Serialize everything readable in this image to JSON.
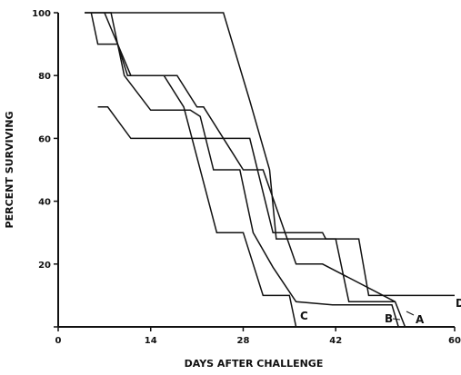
{
  "chart_data": {
    "type": "line",
    "title": "",
    "xlabel": "DAYS AFTER CHALLENGE",
    "ylabel": "PERCENT SURVIVING",
    "xlim": [
      0,
      60
    ],
    "ylim": [
      0,
      100
    ],
    "x_ticks": [
      0,
      14,
      28,
      42,
      60
    ],
    "y_ticks": [
      0,
      20,
      40,
      60,
      80,
      100
    ],
    "x_tick_labels": [
      "0",
      "14",
      "28",
      "42",
      "60"
    ],
    "y_tick_labels": [
      "",
      "20",
      "40",
      "60",
      "80",
      "100"
    ],
    "grid": false,
    "series": [
      {
        "name": "A",
        "x": [
          7,
          11,
          18,
          21,
          22,
          28,
          31,
          36,
          40,
          51,
          52.5
        ],
        "y": [
          100,
          80,
          80,
          70,
          70,
          50,
          50,
          20,
          20,
          8,
          0
        ]
      },
      {
        "name": "B",
        "x": [
          4,
          8,
          10,
          14,
          20,
          21.5,
          23.5,
          27.5,
          29.5,
          32.5,
          36,
          41.5,
          45,
          50.5,
          51.5
        ],
        "y": [
          100,
          100,
          80,
          69,
          69,
          67,
          50,
          50,
          30,
          19,
          8,
          7,
          7,
          7,
          0
        ]
      },
      {
        "name": "C",
        "x": [
          5,
          6,
          9,
          10.5,
          16,
          19,
          24,
          28,
          31,
          32,
          35,
          36,
          40,
          43,
          51,
          52
        ],
        "y": [
          100,
          90,
          90,
          80,
          80,
          70,
          30,
          30,
          10,
          10,
          10,
          0,
          0,
          0,
          0,
          0
        ]
      },
      {
        "name": "D",
        "x": [
          6,
          7.5,
          11,
          19,
          29,
          32.5,
          34.5,
          37.5,
          40,
          40.5,
          45.5,
          47,
          60
        ],
        "y": [
          70,
          70,
          60,
          60,
          60,
          30,
          30,
          30,
          30,
          28,
          28,
          10,
          10
        ]
      },
      {
        "name": "",
        "x": [
          4,
          25,
          29,
          32,
          33,
          42,
          44,
          51
        ],
        "y": [
          100,
          100,
          72,
          50,
          28,
          28,
          8,
          8
        ]
      }
    ],
    "series_labels": [
      "A",
      "B",
      "C",
      "D"
    ],
    "legend": "none"
  }
}
